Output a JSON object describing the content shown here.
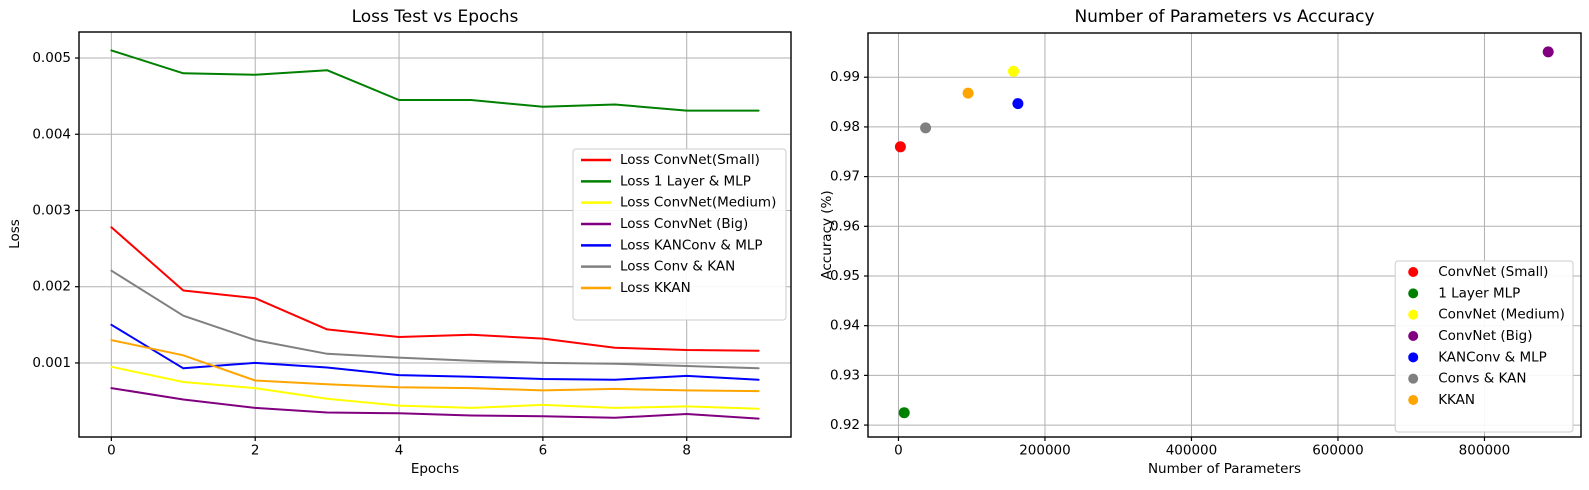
{
  "figure": {
    "background": "#ffffff",
    "grid_color": "#b0b0b0",
    "spine_color": "#000000",
    "text_color": "#000000",
    "legend_background": "#ffffff",
    "legend_border_color": "#cccccc"
  },
  "chart_data": [
    {
      "id": "loss-test-vs-epochs",
      "type": "line",
      "title": "Loss Test vs Epochs",
      "xlabel": "Epochs",
      "ylabel": "Loss",
      "grid": true,
      "x": [
        0,
        1,
        2,
        3,
        4,
        5,
        6,
        7,
        8,
        9
      ],
      "xlim": [
        -0.45,
        9.45
      ],
      "ylim": [
        2.85e-05,
        0.0053415
      ],
      "xticks": [
        0,
        2,
        4,
        6,
        8
      ],
      "xtick_labels": [
        "0",
        "2",
        "4",
        "6",
        "8"
      ],
      "yticks": [
        0.001,
        0.002,
        0.003,
        0.004,
        0.005
      ],
      "ytick_labels": [
        "0.001",
        "0.002",
        "0.003",
        "0.004",
        "0.005"
      ],
      "legend": {
        "loc": "center-right",
        "marker": "line"
      },
      "series": [
        {
          "name": "Loss ConvNet(Small)",
          "color": "#ff0000",
          "values": [
            0.00278,
            0.00195,
            0.00185,
            0.00144,
            0.00134,
            0.00137,
            0.00132,
            0.0012,
            0.00117,
            0.00116
          ]
        },
        {
          "name": "Loss 1 Layer & MLP",
          "color": "#008000",
          "values": [
            0.0051,
            0.0048,
            0.00478,
            0.00484,
            0.00445,
            0.00445,
            0.00436,
            0.00439,
            0.00431,
            0.00431
          ]
        },
        {
          "name": "Loss ConvNet(Medium)",
          "color": "#ffff00",
          "values": [
            0.00095,
            0.00075,
            0.00067,
            0.00053,
            0.00044,
            0.00041,
            0.00045,
            0.00041,
            0.00043,
            0.0004
          ]
        },
        {
          "name": "Loss ConvNet (Big)",
          "color": "#800080",
          "values": [
            0.00067,
            0.00052,
            0.00041,
            0.00035,
            0.00034,
            0.00031,
            0.0003,
            0.00028,
            0.00033,
            0.00027
          ]
        },
        {
          "name": "Loss KANConv & MLP",
          "color": "#0000ff",
          "values": [
            0.0015,
            0.00093,
            0.001,
            0.00094,
            0.00084,
            0.00082,
            0.00079,
            0.00078,
            0.00083,
            0.00078
          ]
        },
        {
          "name": "Loss Conv & KAN",
          "color": "#808080",
          "values": [
            0.00221,
            0.00162,
            0.0013,
            0.00112,
            0.00107,
            0.00103,
            0.001,
            0.00099,
            0.00096,
            0.00093
          ]
        },
        {
          "name": "Loss KKAN",
          "color": "#ffa500",
          "values": [
            0.0013,
            0.0011,
            0.00077,
            0.00072,
            0.00068,
            0.00067,
            0.00064,
            0.00066,
            0.00064,
            0.00063
          ]
        }
      ]
    },
    {
      "id": "params-vs-accuracy",
      "type": "scatter",
      "title": "Number of Parameters vs Accuracy",
      "xlabel": "Number of Parameters",
      "ylabel": "Accuracy (%)",
      "grid": true,
      "xlim": [
        -41600,
        931800
      ],
      "ylim": [
        0.9176,
        0.9989
      ],
      "xticks": [
        0,
        200000,
        400000,
        600000,
        800000
      ],
      "xtick_labels": [
        "0",
        "200000",
        "400000",
        "600000",
        "800000"
      ],
      "yticks": [
        0.92,
        0.93,
        0.94,
        0.95,
        0.96,
        0.97,
        0.98,
        0.99
      ],
      "ytick_labels": [
        "0.92",
        "0.93",
        "0.94",
        "0.95",
        "0.96",
        "0.97",
        "0.98",
        "0.99"
      ],
      "legend": {
        "loc": "lower-right",
        "marker": "dot"
      },
      "series": [
        {
          "name": "ConvNet (Small)",
          "color": "#ff0000",
          "points": [
            {
              "x": 2600,
              "y": 0.976
            }
          ]
        },
        {
          "name": "1 Layer MLP",
          "color": "#008000",
          "points": [
            {
              "x": 7850,
              "y": 0.9225
            }
          ]
        },
        {
          "name": "ConvNet (Medium)",
          "color": "#ffff00",
          "points": [
            {
              "x": 157000,
              "y": 0.9912
            }
          ]
        },
        {
          "name": "ConvNet (Big)",
          "color": "#800080",
          "points": [
            {
              "x": 887000,
              "y": 0.9951
            }
          ]
        },
        {
          "name": "KANConv & MLP",
          "color": "#0000ff",
          "points": [
            {
              "x": 163000,
              "y": 0.9847
            }
          ]
        },
        {
          "name": "Convs & KAN",
          "color": "#808080",
          "points": [
            {
              "x": 37000,
              "y": 0.9798
            }
          ]
        },
        {
          "name": "KKAN",
          "color": "#ffa500",
          "points": [
            {
              "x": 95000,
              "y": 0.9868
            }
          ]
        }
      ]
    }
  ]
}
